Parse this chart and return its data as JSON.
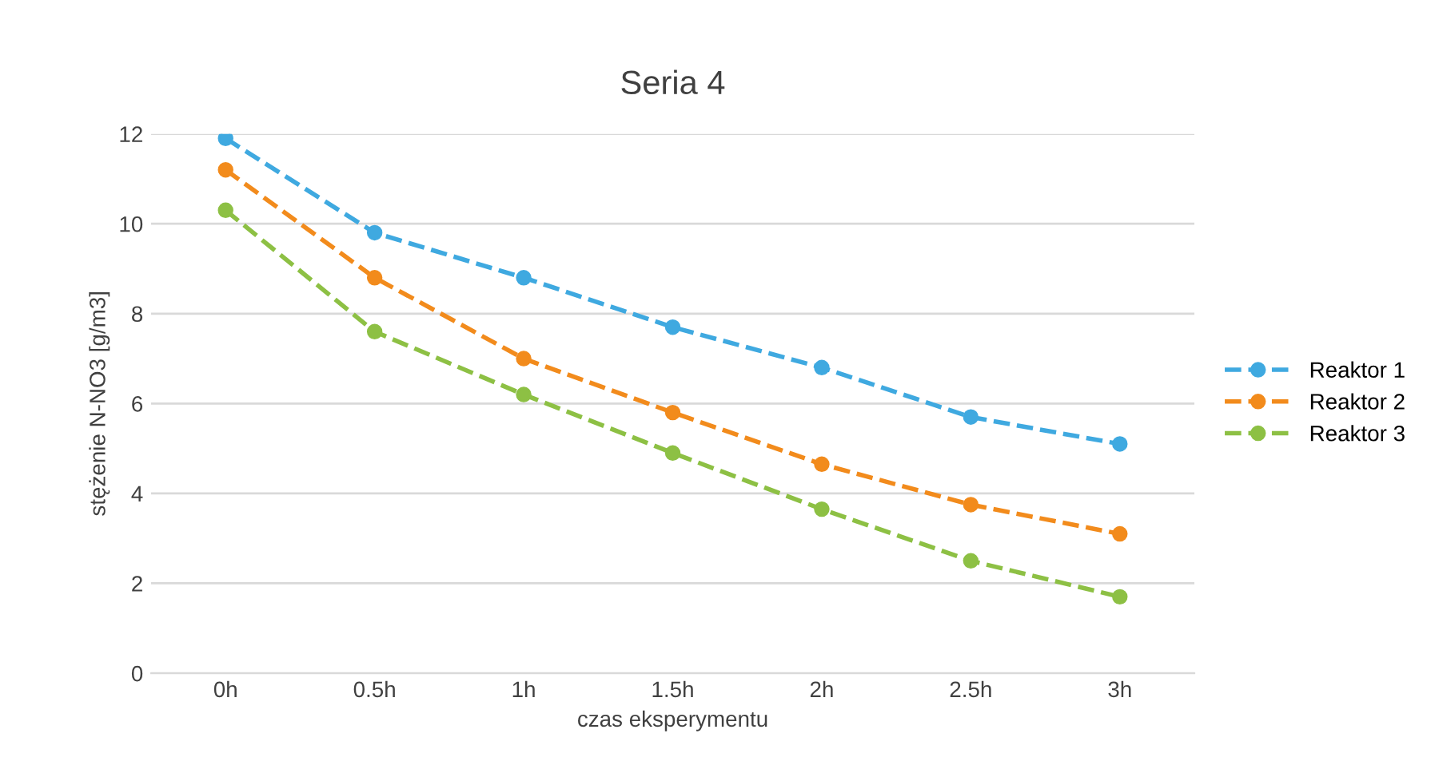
{
  "chart_data": {
    "type": "line",
    "title": "Seria 4",
    "xlabel": "czas eksperymentu",
    "ylabel": "stężenie N-NO3 [g/m3]",
    "categories": [
      "0h",
      "0.5h",
      "1h",
      "1.5h",
      "2h",
      "2.5h",
      "3h"
    ],
    "series": [
      {
        "name": "Reaktor 1",
        "color": "#3fa9e0",
        "values": [
          11.9,
          9.8,
          8.8,
          7.7,
          6.8,
          5.7,
          5.1
        ]
      },
      {
        "name": "Reaktor 2",
        "color": "#f28b1c",
        "values": [
          11.2,
          8.8,
          7.0,
          5.8,
          4.65,
          3.75,
          3.1
        ]
      },
      {
        "name": "Reaktor 3",
        "color": "#8dc044",
        "values": [
          10.3,
          7.6,
          6.2,
          4.9,
          3.65,
          2.5,
          1.7
        ]
      }
    ],
    "ylim": [
      0,
      12
    ],
    "yticks": [
      0,
      2,
      4,
      6,
      8,
      10,
      12
    ],
    "grid": "y",
    "legend": "right",
    "marker": "circle",
    "line_style": "dashed"
  }
}
